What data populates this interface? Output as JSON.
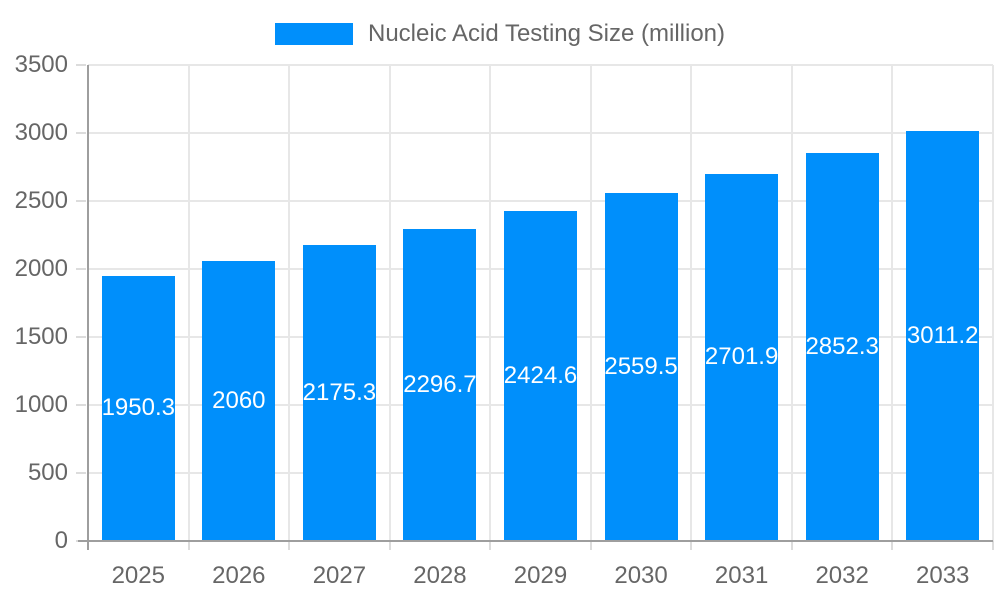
{
  "legend": {
    "label": "Nucleic Acid Testing Size (million)"
  },
  "chart_data": {
    "type": "bar",
    "title": "Nucleic Acid Testing Size (million)",
    "series_name": "Nucleic Acid Testing Size (million)",
    "categories": [
      "2025",
      "2026",
      "2027",
      "2028",
      "2029",
      "2030",
      "2031",
      "2032",
      "2033"
    ],
    "values": [
      1950.3,
      2060,
      2175.3,
      2296.7,
      2424.6,
      2559.5,
      2701.9,
      2852.3,
      3011.2
    ],
    "value_labels": [
      "1950.3",
      "2060",
      "2175.3",
      "2296.7",
      "2424.6",
      "2559.5",
      "2701.9",
      "2852.3",
      "3011.2"
    ],
    "xlabel": "",
    "ylabel": "",
    "ylim": [
      0,
      3500
    ],
    "yticks": [
      0,
      500,
      1000,
      1500,
      2000,
      2500,
      3000,
      3500
    ],
    "grid": "horizontal-and-vertical",
    "legend_position": "top-center",
    "value_label_position": "inside-center",
    "colors": {
      "bar": "#008FFB",
      "bar_value_label": "#ffffff",
      "axis_line": "#9e9e9e",
      "gridline": "#e7e7e7",
      "tick": "#dcdcdc",
      "tick_label": "#666666",
      "legend_text": "#666666",
      "background": "#ffffff"
    }
  }
}
